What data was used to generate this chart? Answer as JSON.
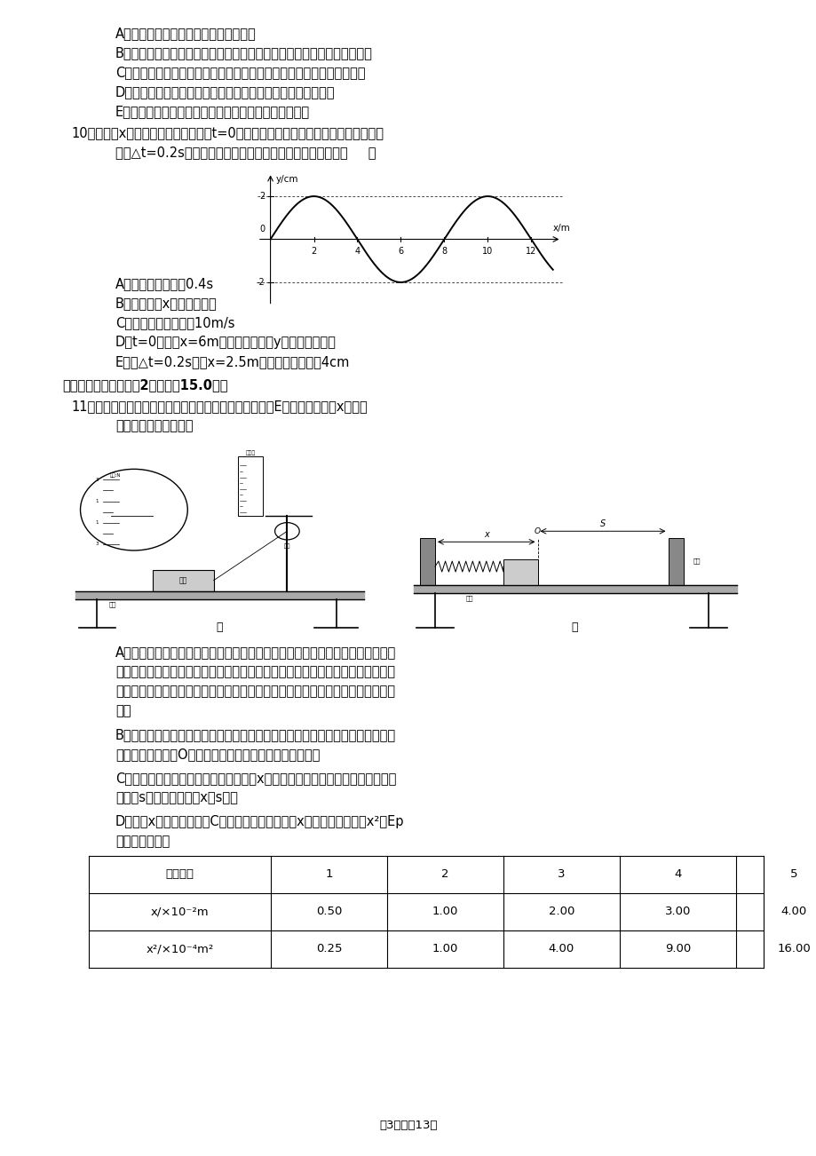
{
  "background_color": "#ffffff",
  "page_width": 9.2,
  "page_height": 13.02,
  "dpi": 100,
  "content": {
    "line_A": "A．一定质量的气体吸热后温度一定升高",
    "line_B": "B．布朗运动是悬浮在液体中的花粉颗粒和液体分子之间的相互碰撞引起的",
    "line_C": "C．知道阿伏加德罗常数和气体的密度就可估算出气体分子间的平均距离",
    "line_D": "D．在热传导中，热量不可能自发地从低温物体传递给高温物体",
    "line_E": "E．单位体积的气体分子数增加，气体的压强不一定增大",
    "q10_line1": "10．一列沿x轴方向传播的简谐横波在t=0时的波形图如图所示，位于坐标原点处的质",
    "q10_line2": "点经△t=0.2s再次回到平衡位置，关于这列波说法正确的是（     ）",
    "ans_A": "A．这列波的周期为0.4s",
    "ans_B": "B．这列波沿x轴正方向传播",
    "ans_C": "C．这列波传播速度为10m/s",
    "ans_D": "D．t=0时位于x=6m处质点加速度沿y轴正方向且最大",
    "ans_E": "E．经△t=0.2s位于x=2.5m处质点通过路程为4cm",
    "section3": "三、实验题（本大题共2小题，共15.0分）",
    "q11_line1": "11．某物理兴趣小组的同学通过实验探究弹簧的弹性势能E与弹簧的压缩量x之间的",
    "q11_line2": "关系，其实验步骤如下",
    "paraA1": "A．用如图甲所示的装置测量木块与木板之间的滑动摩擦力跨过光滑定滑轮的细线",
    "paraA2": "两；端分别与木块和弹簧秤相连，滑轮和木板间的细线保持水平。缓慢向左拉动水",
    "paraA3": "平放置的木板，当木块相对桌面静止且木板仍在继续滑动时弹簧秤的示数如图甲所",
    "paraA4": "示。",
    "paraB1": "B．如图乙所示，把木板固定在水平桌面上，将所研究的弹簧的一端固定在木板左",
    "paraB2": "端的竖直挡板上，O是弹簧处于自然长度时右端所在位置。",
    "paraC1": "C．用本块压缩弹簧，当弹簧的压缩量为x时由静止释放木块木块向右运动的最大",
    "paraC2": "距离是s，用刻度尺测得x和s的值",
    "paraD1": "D．改变x的大小，按步骤C要求继续实验测得多组x的值并求得对应的x²和Ep",
    "paraD2": "的值如下表所示",
    "footer": "第3页，共13页",
    "table_headers": [
      "实验次数",
      "1",
      "2",
      "3",
      "4",
      "5"
    ],
    "table_row1": [
      "x/×10⁻²m",
      "0.50",
      "1.00",
      "2.00",
      "3.00",
      "4.00"
    ],
    "table_row2": [
      "x²/×10⁻⁴m²",
      "0.25",
      "1.00",
      "4.00",
      "9.00",
      "16.00"
    ]
  }
}
